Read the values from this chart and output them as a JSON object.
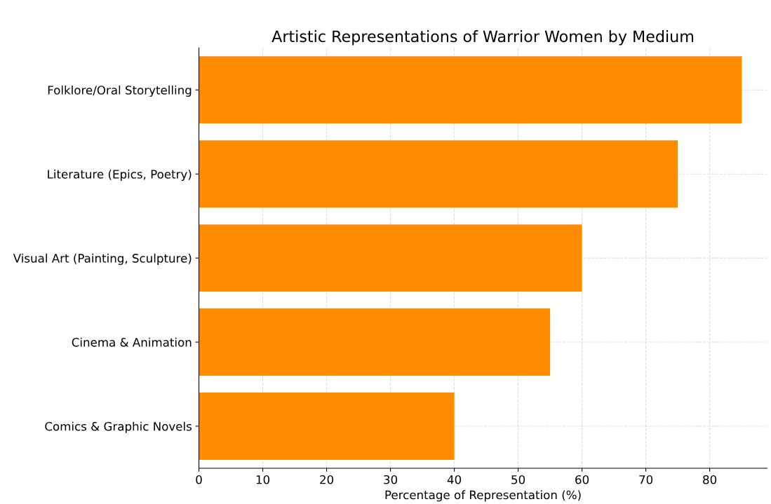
{
  "chart_data": {
    "type": "bar",
    "orientation": "horizontal",
    "title": "Artistic Representations of Warrior Women by Medium",
    "xlabel": "Percentage of Representation (%)",
    "categories": [
      "Folklore/Oral Storytelling",
      "Literature (Epics, Poetry)",
      "Visual Art (Painting, Sculpture)",
      "Cinema & Animation",
      "Comics & Graphic Novels"
    ],
    "values": [
      85,
      75,
      60,
      55,
      40
    ],
    "color": "#ff8c00",
    "xlim": [
      0,
      89
    ],
    "xticks": [
      0,
      10,
      20,
      30,
      40,
      50,
      60,
      70,
      80
    ],
    "grid": true
  }
}
